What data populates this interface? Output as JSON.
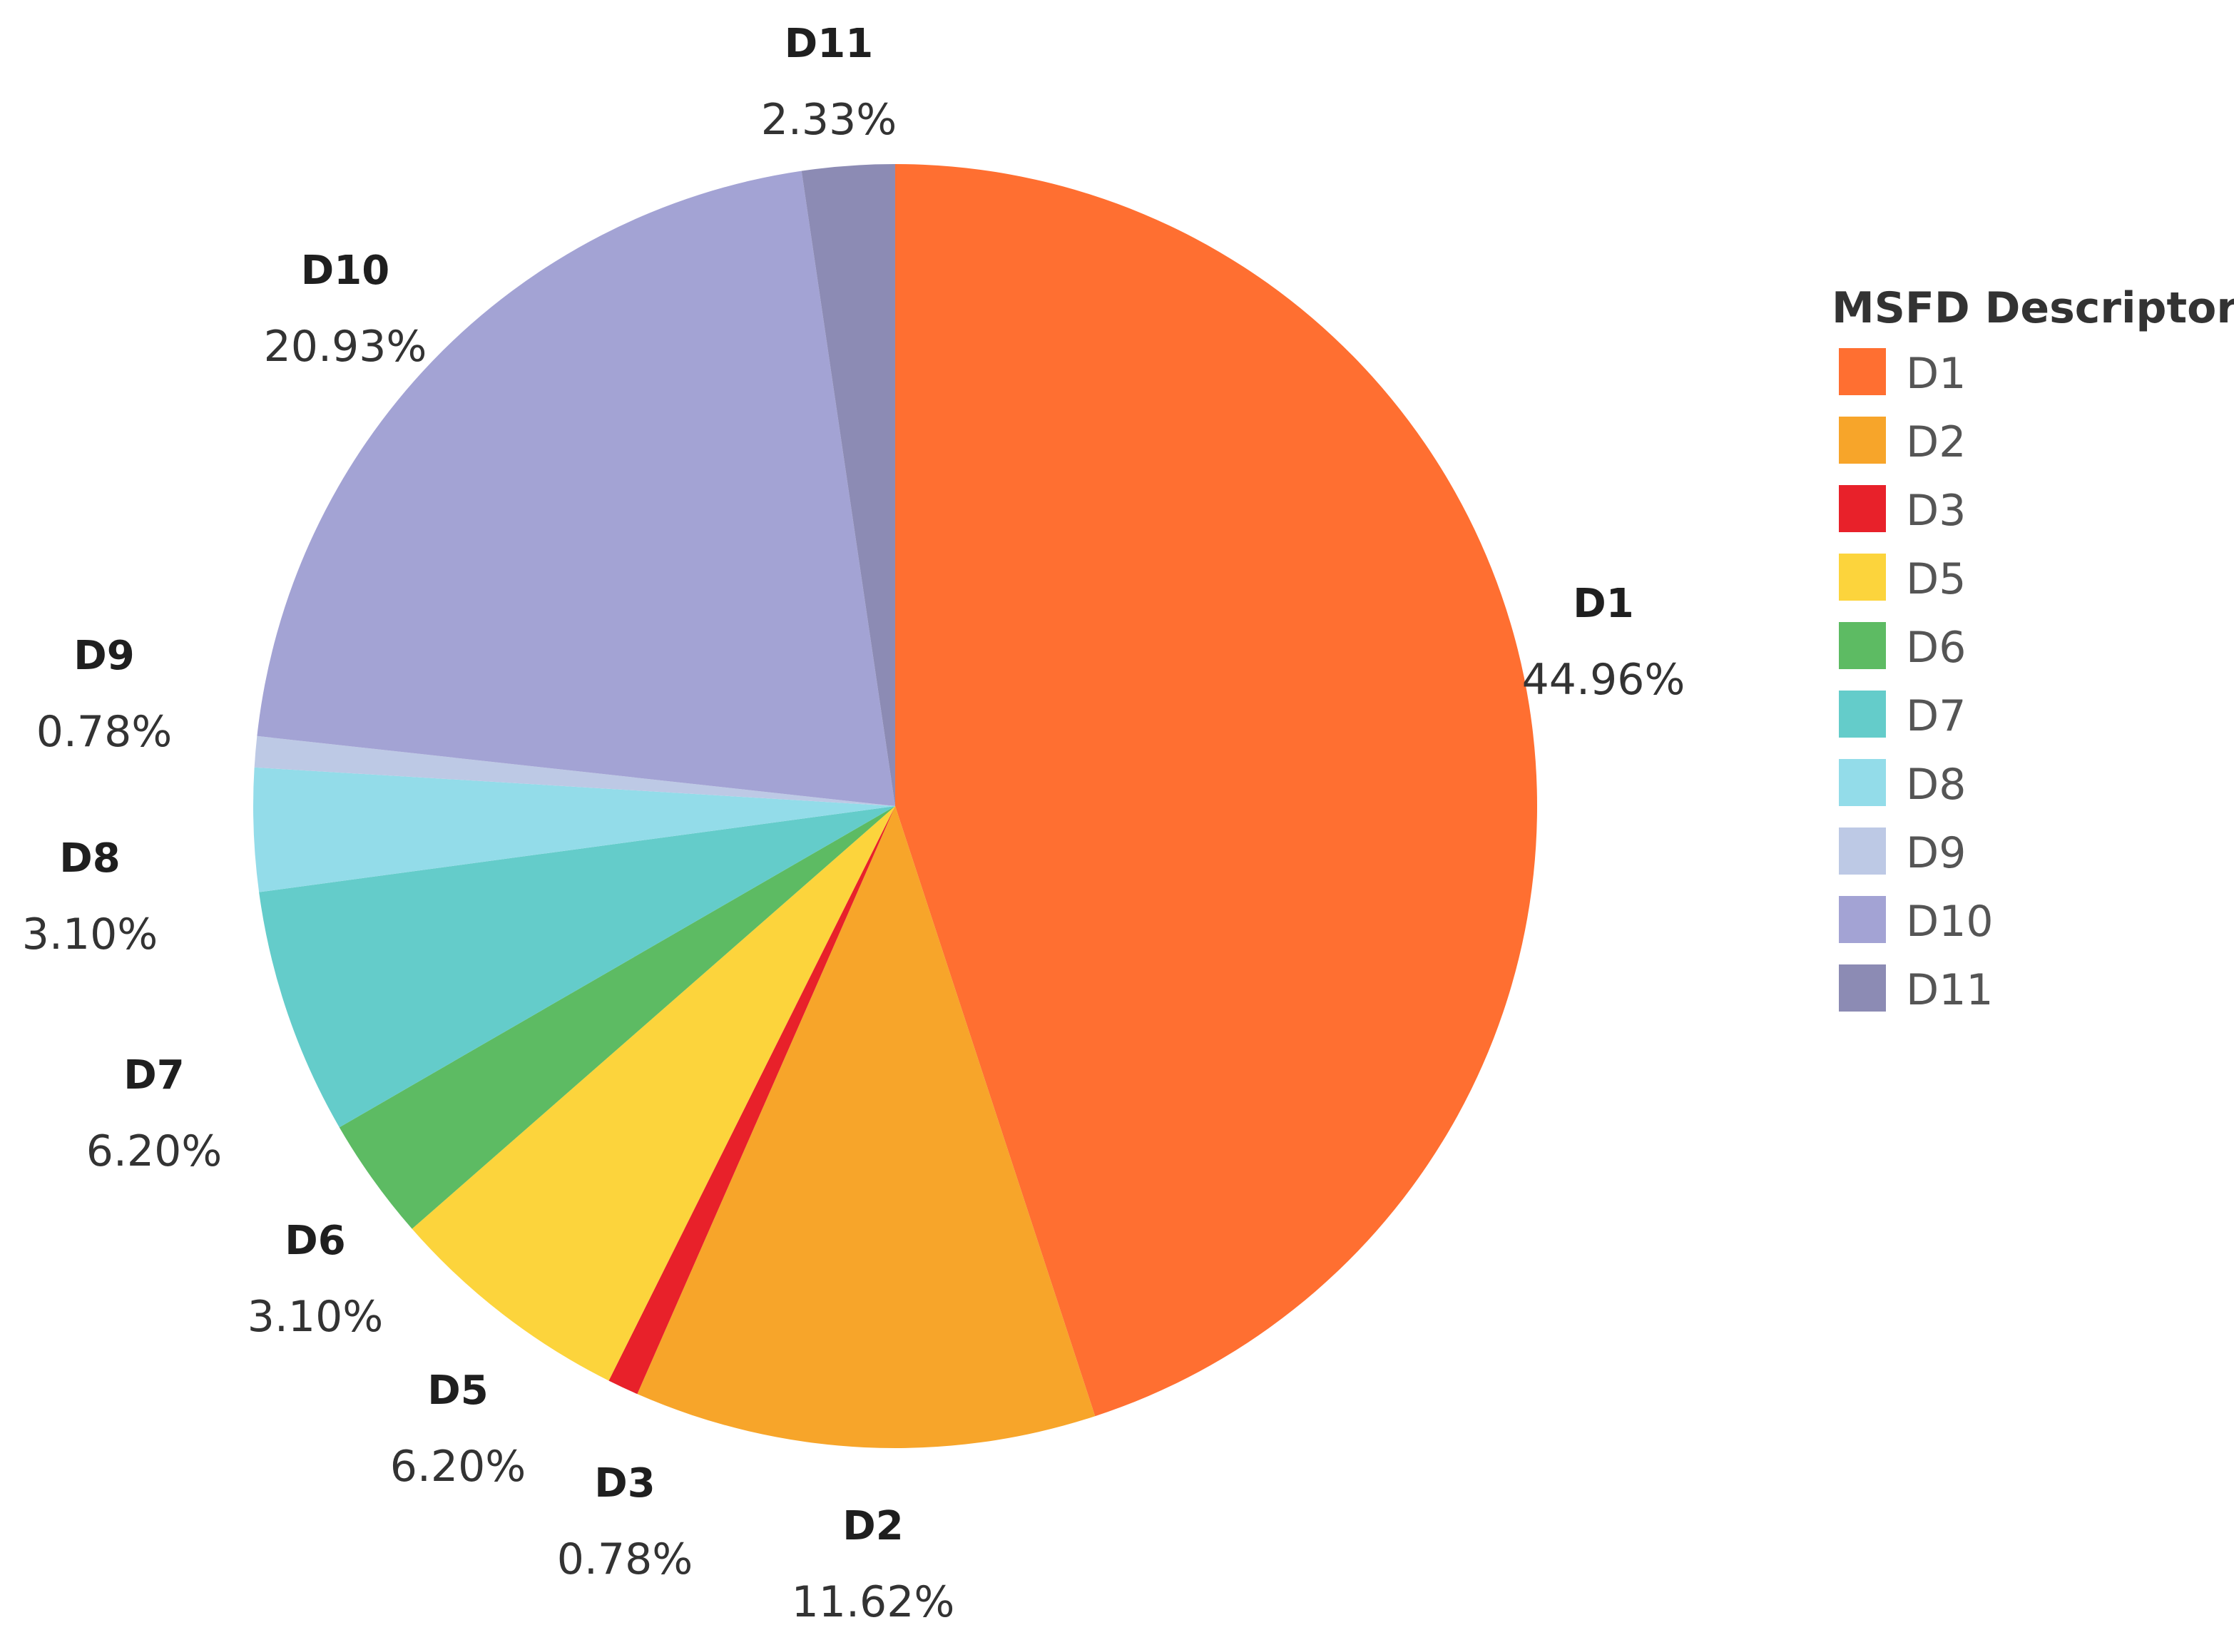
{
  "chart_data": {
    "type": "pie",
    "title": "",
    "legend": {
      "title": "MSFD Descriptor",
      "placement": "right"
    },
    "slices": [
      {
        "label": "D1",
        "value": 44.96,
        "value_label": "44.96%",
        "color": "#FF6F31"
      },
      {
        "label": "D2",
        "value": 11.62,
        "value_label": "11.62%",
        "color": "#F7A52A"
      },
      {
        "label": "D3",
        "value": 0.78,
        "value_label": "0.78%",
        "color": "#E8212A"
      },
      {
        "label": "D5",
        "value": 6.2,
        "value_label": "6.20%",
        "color": "#FCD43C"
      },
      {
        "label": "D6",
        "value": 3.1,
        "value_label": "3.10%",
        "color": "#5DBB63"
      },
      {
        "label": "D7",
        "value": 6.2,
        "value_label": "6.20%",
        "color": "#64CCCA"
      },
      {
        "label": "D8",
        "value": 3.1,
        "value_label": "3.10%",
        "color": "#93DCE9"
      },
      {
        "label": "D9",
        "value": 0.78,
        "value_label": "0.78%",
        "color": "#BDC9E5"
      },
      {
        "label": "D10",
        "value": 20.93,
        "value_label": "20.93%",
        "color": "#A3A3D4"
      },
      {
        "label": "D11",
        "value": 2.33,
        "value_label": "2.33%",
        "color": "#8C8BB4"
      }
    ]
  }
}
